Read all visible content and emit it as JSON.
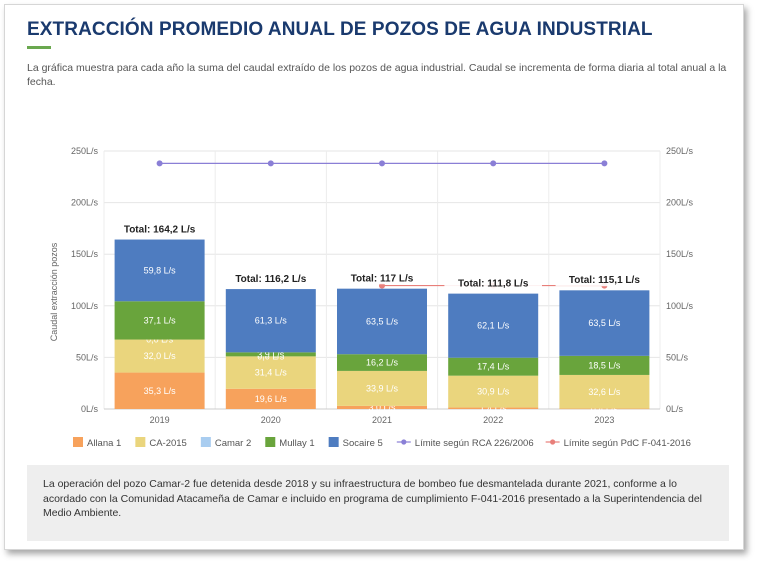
{
  "header": {
    "title": "EXTRACCIÓN PROMEDIO ANUAL DE POZOS DE AGUA INDUSTRIAL",
    "subtitle": "La gráfica muestra para cada año la suma del caudal extraído de los pozos de agua industrial. Caudal se incrementa de forma diaria al total anual a la fecha."
  },
  "note": "La operación del pozo Camar-2 fue detenida desde 2018 y su infraestructura de bombeo fue desmantelada durante 2021, conforme a lo acordado con la Comunidad Atacameña de Camar e incluido en programa de cumplimiento F-041-2016 presentado a la Superintendencia del Medio Ambiente.",
  "chart_data": {
    "type": "bar",
    "stacked": true,
    "categories": [
      "2019",
      "2020",
      "2021",
      "2022",
      "2023"
    ],
    "ylabel": "Caudal extracción pozos",
    "ylim": [
      0,
      250
    ],
    "yticks": [
      "0L/s",
      "50L/s",
      "100L/s",
      "150L/s",
      "200L/s",
      "250L/s"
    ],
    "grid": true,
    "legend_position": "bottom",
    "series": [
      {
        "name": "Allana 1",
        "color": "#f7a25c",
        "values": [
          35.3,
          19.6,
          3.0,
          1.4,
          0.4
        ],
        "labels": [
          "35,3 L/s",
          "19,6 L/s",
          "3,0 L/s",
          "1,4 L/s",
          "0,4 L/s"
        ]
      },
      {
        "name": "CA-2015",
        "color": "#ead57d",
        "values": [
          32.0,
          31.4,
          33.9,
          30.9,
          32.6
        ],
        "labels": [
          "32,0 L/s",
          "31,4 L/s",
          "33,9 L/s",
          "30,9 L/s",
          "32,6 L/s"
        ]
      },
      {
        "name": "Camar 2",
        "color": "#a9cdf0",
        "values": [
          0.0,
          0.0,
          0.0,
          0.0,
          0.0
        ],
        "labels": [
          "0,0 L/s",
          "0,0 L/s",
          "",
          "",
          ""
        ]
      },
      {
        "name": "Mullay 1",
        "color": "#69a43c",
        "values": [
          37.1,
          3.9,
          16.2,
          17.4,
          18.5
        ],
        "labels": [
          "37,1 L/s",
          "3,9 L/s",
          "16,2 L/s",
          "17,4 L/s",
          "18,5 L/s"
        ]
      },
      {
        "name": "Socaire 5",
        "color": "#4e7cc0",
        "values": [
          59.8,
          61.3,
          63.5,
          62.1,
          63.5
        ],
        "labels": [
          "59,8 L/s",
          "61,3 L/s",
          "63,5 L/s",
          "62,1 L/s",
          "63,5 L/s"
        ]
      }
    ],
    "totals": [
      "Total: 164,2 L/s",
      "Total: 116,2 L/s",
      "Total: 117 L/s",
      "Total: 111,8 L/s",
      "Total: 115,1 L/s"
    ],
    "totals_values": [
      164.2,
      116.2,
      117,
      111.8,
      115.1
    ],
    "lines": [
      {
        "name": "Límite según RCA 226/2006",
        "color": "#8a7fd6",
        "values": [
          238,
          238,
          238,
          238,
          238
        ]
      },
      {
        "name": "Límite según PdC F-041-2016",
        "color": "#e87f7a",
        "values": [
          null,
          null,
          119.6,
          119.6,
          119.6
        ]
      }
    ]
  }
}
